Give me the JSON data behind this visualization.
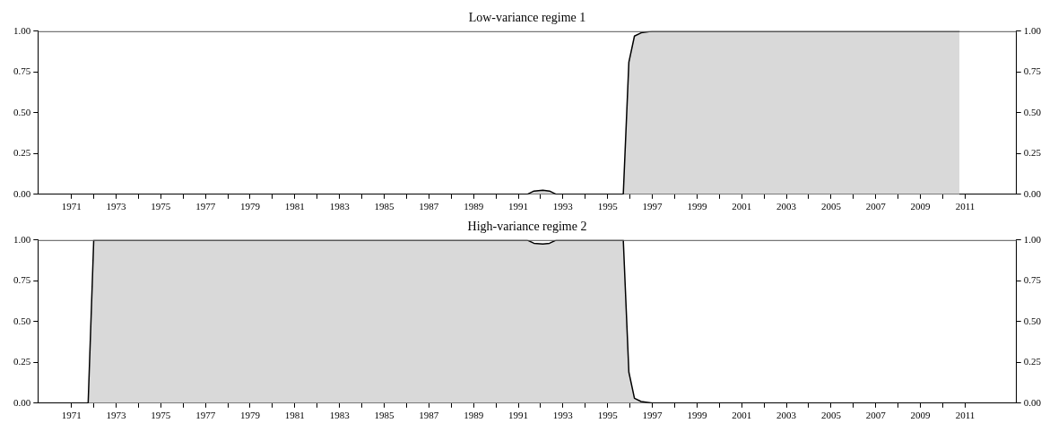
{
  "chart_data": [
    {
      "type": "area",
      "title": "Low-variance regime 1",
      "series": [
        {
          "color": "#d9d9d9",
          "x": [
            1971.75,
            1991.4,
            1991.7,
            1992.1,
            1992.4,
            1992.7,
            1995.7,
            1995.95,
            1996.2,
            1996.5,
            1997.0,
            2010.75
          ],
          "values": [
            0,
            0,
            0.02,
            0.025,
            0.02,
            0,
            0,
            0.81,
            0.97,
            0.99,
            1,
            1
          ]
        }
      ],
      "xlim": [
        1969.5,
        2013.3
      ],
      "xticks": [
        {
          "value": 1971,
          "label": "1971"
        },
        {
          "value": 1972,
          "label": null
        },
        {
          "value": 1973,
          "label": "1973"
        },
        {
          "value": 1974,
          "label": null
        },
        {
          "value": 1975,
          "label": "1975"
        },
        {
          "value": 1976,
          "label": null
        },
        {
          "value": 1977,
          "label": "1977"
        },
        {
          "value": 1978,
          "label": null
        },
        {
          "value": 1979,
          "label": "1979"
        },
        {
          "value": 1980,
          "label": null
        },
        {
          "value": 1981,
          "label": "1981"
        },
        {
          "value": 1982,
          "label": null
        },
        {
          "value": 1983,
          "label": "1983"
        },
        {
          "value": 1984,
          "label": null
        },
        {
          "value": 1985,
          "label": "1985"
        },
        {
          "value": 1986,
          "label": null
        },
        {
          "value": 1987,
          "label": "1987"
        },
        {
          "value": 1988,
          "label": null
        },
        {
          "value": 1989,
          "label": "1989"
        },
        {
          "value": 1990,
          "label": null
        },
        {
          "value": 1991,
          "label": "1991"
        },
        {
          "value": 1992,
          "label": null
        },
        {
          "value": 1993,
          "label": "1993"
        },
        {
          "value": 1994,
          "label": null
        },
        {
          "value": 1995,
          "label": "1995"
        },
        {
          "value": 1996,
          "label": null
        },
        {
          "value": 1997,
          "label": "1997"
        },
        {
          "value": 1998,
          "label": null
        },
        {
          "value": 1999,
          "label": "1999"
        },
        {
          "value": 2000,
          "label": null
        },
        {
          "value": 2001,
          "label": "2001"
        },
        {
          "value": 2002,
          "label": null
        },
        {
          "value": 2003,
          "label": "2003"
        },
        {
          "value": 2004,
          "label": null
        },
        {
          "value": 2005,
          "label": "2005"
        },
        {
          "value": 2006,
          "label": null
        },
        {
          "value": 2007,
          "label": "2007"
        },
        {
          "value": 2008,
          "label": null
        },
        {
          "value": 2009,
          "label": "2009"
        },
        {
          "value": 2010,
          "label": null
        },
        {
          "value": 2011,
          "label": "2011"
        }
      ],
      "ylim": [
        0,
        1
      ],
      "yticks": [
        {
          "value": 0,
          "label": "0.00"
        },
        {
          "value": 0.25,
          "label": "0.25"
        },
        {
          "value": 0.5,
          "label": "0.50"
        },
        {
          "value": 0.75,
          "label": "0.75"
        },
        {
          "value": 1,
          "label": "1.00"
        }
      ],
      "y2lim": [
        0,
        1
      ],
      "y2ticks": [
        {
          "value": 0,
          "label": "0.00"
        },
        {
          "value": 0.25,
          "label": "0.25"
        },
        {
          "value": 0.5,
          "label": "0.50"
        },
        {
          "value": 0.75,
          "label": "0.75"
        },
        {
          "value": 1,
          "label": "1.00"
        }
      ],
      "grid": false,
      "legend": false
    },
    {
      "type": "area",
      "title": "High-variance regime 2",
      "series": [
        {
          "color": "#d9d9d9",
          "x": [
            1971.75,
            1972.0,
            1991.4,
            1991.7,
            1992.1,
            1992.4,
            1992.7,
            1995.7,
            1995.95,
            1996.2,
            1996.5,
            1997.0,
            2010.75
          ],
          "values": [
            0,
            1,
            1,
            0.98,
            0.975,
            0.98,
            1,
            1,
            0.19,
            0.03,
            0.01,
            0,
            0
          ]
        }
      ],
      "xlim": [
        1969.5,
        2013.3
      ],
      "xticks": [
        {
          "value": 1971,
          "label": "1971"
        },
        {
          "value": 1972,
          "label": null
        },
        {
          "value": 1973,
          "label": "1973"
        },
        {
          "value": 1974,
          "label": null
        },
        {
          "value": 1975,
          "label": "1975"
        },
        {
          "value": 1976,
          "label": null
        },
        {
          "value": 1977,
          "label": "1977"
        },
        {
          "value": 1978,
          "label": null
        },
        {
          "value": 1979,
          "label": "1979"
        },
        {
          "value": 1980,
          "label": null
        },
        {
          "value": 1981,
          "label": "1981"
        },
        {
          "value": 1982,
          "label": null
        },
        {
          "value": 1983,
          "label": "1983"
        },
        {
          "value": 1984,
          "label": null
        },
        {
          "value": 1985,
          "label": "1985"
        },
        {
          "value": 1986,
          "label": null
        },
        {
          "value": 1987,
          "label": "1987"
        },
        {
          "value": 1988,
          "label": null
        },
        {
          "value": 1989,
          "label": "1989"
        },
        {
          "value": 1990,
          "label": null
        },
        {
          "value": 1991,
          "label": "1991"
        },
        {
          "value": 1992,
          "label": null
        },
        {
          "value": 1993,
          "label": "1993"
        },
        {
          "value": 1994,
          "label": null
        },
        {
          "value": 1995,
          "label": "1995"
        },
        {
          "value": 1996,
          "label": null
        },
        {
          "value": 1997,
          "label": "1997"
        },
        {
          "value": 1998,
          "label": null
        },
        {
          "value": 1999,
          "label": "1999"
        },
        {
          "value": 2000,
          "label": null
        },
        {
          "value": 2001,
          "label": "2001"
        },
        {
          "value": 2002,
          "label": null
        },
        {
          "value": 2003,
          "label": "2003"
        },
        {
          "value": 2004,
          "label": null
        },
        {
          "value": 2005,
          "label": "2005"
        },
        {
          "value": 2006,
          "label": null
        },
        {
          "value": 2007,
          "label": "2007"
        },
        {
          "value": 2008,
          "label": null
        },
        {
          "value": 2009,
          "label": "2009"
        },
        {
          "value": 2010,
          "label": null
        },
        {
          "value": 2011,
          "label": "2011"
        }
      ],
      "ylim": [
        0,
        1
      ],
      "yticks": [
        {
          "value": 0,
          "label": "0.00"
        },
        {
          "value": 0.25,
          "label": "0.25"
        },
        {
          "value": 0.5,
          "label": "0.50"
        },
        {
          "value": 0.75,
          "label": "0.75"
        },
        {
          "value": 1,
          "label": "1.00"
        }
      ],
      "y2lim": [
        0,
        1
      ],
      "y2ticks": [
        {
          "value": 0,
          "label": "0.00"
        },
        {
          "value": 0.25,
          "label": "0.25"
        },
        {
          "value": 0.5,
          "label": "0.50"
        },
        {
          "value": 0.75,
          "label": "0.75"
        },
        {
          "value": 1,
          "label": "1.00"
        }
      ],
      "grid": false,
      "legend": false
    }
  ]
}
